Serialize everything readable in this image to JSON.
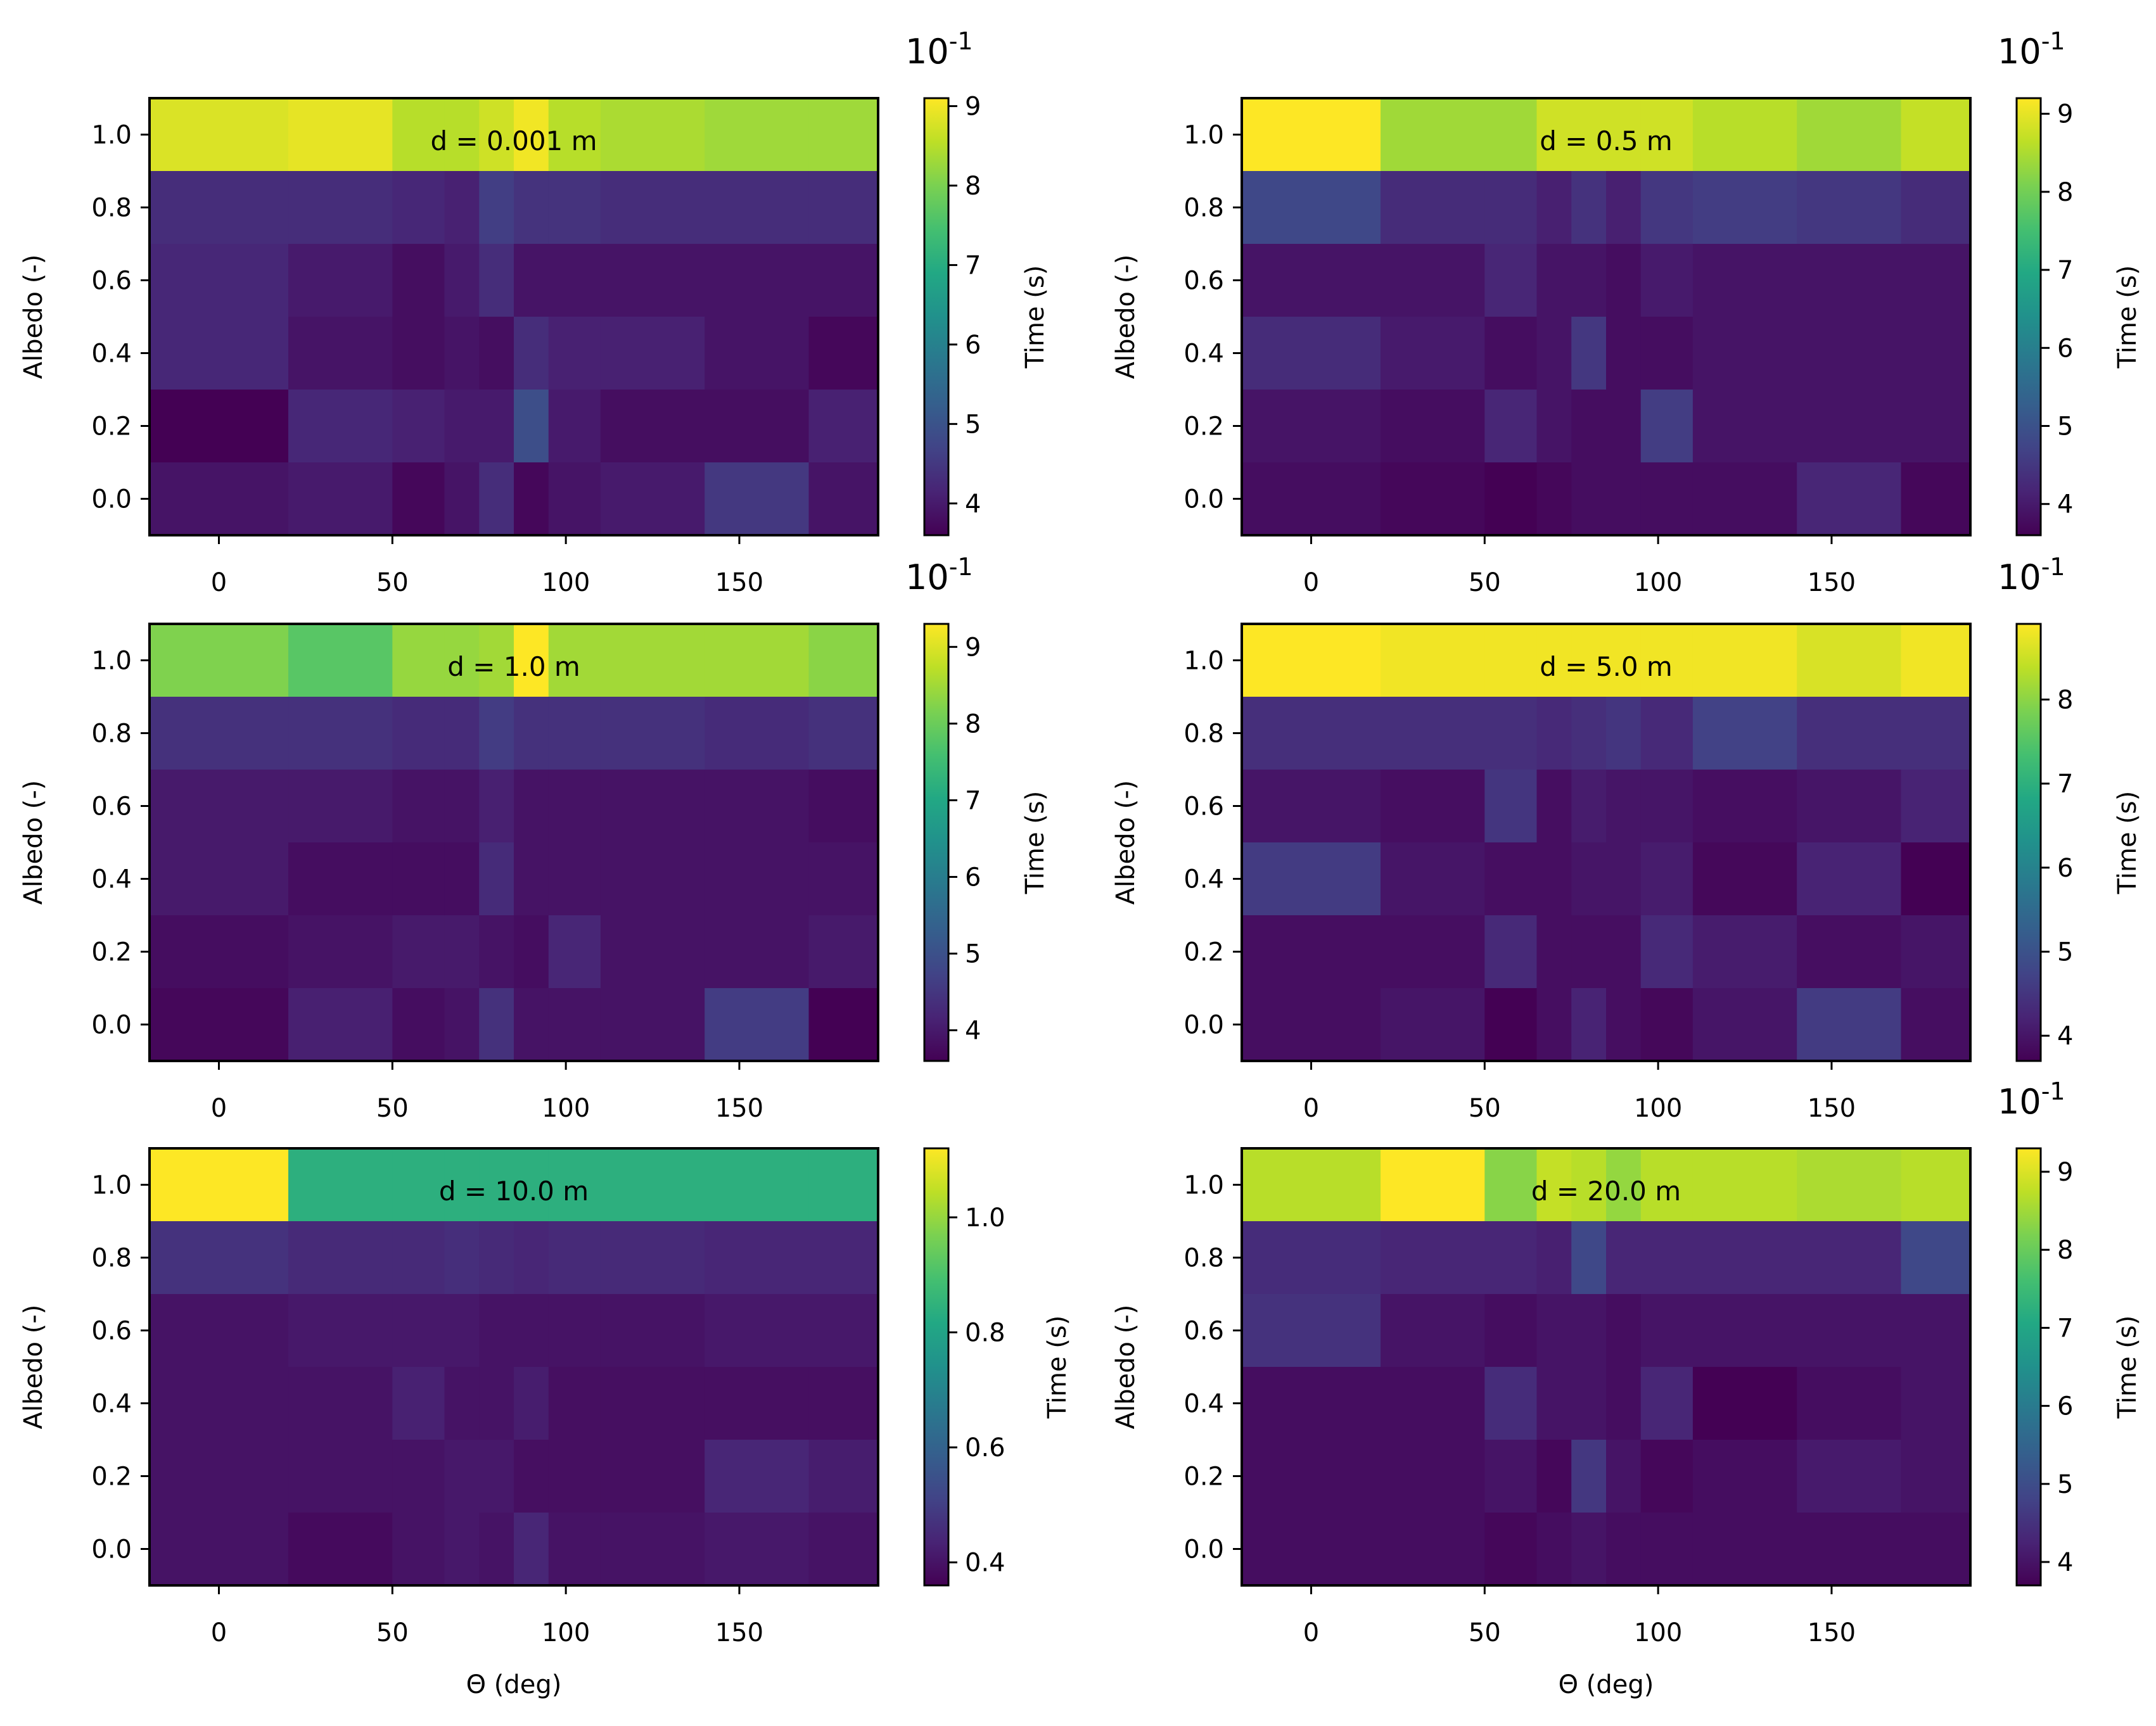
{
  "figure": {
    "x_axis_label": "Θ (deg)",
    "y_axis_label": "Albedo (-)",
    "colorbar_label": "Time (s)",
    "colormap": "viridis",
    "axes_color": "#000000",
    "background": "#ffffff"
  },
  "chart_data": [
    {
      "type": "heatmap",
      "title": "d = 0.001 m",
      "x_edges": [
        -20,
        20,
        50,
        65,
        75,
        85,
        95,
        110,
        140,
        170,
        190
      ],
      "x_ticks": [
        "0",
        "50",
        "100",
        "150"
      ],
      "y_centers": [
        1.0,
        0.8,
        0.6,
        0.4,
        0.2,
        0.0
      ],
      "y_ticks": [
        "1.0",
        "0.8",
        "0.6",
        "0.4",
        "0.2",
        "0.0"
      ],
      "xlim": [
        -20,
        190
      ],
      "ylim": [
        -0.1,
        1.1
      ],
      "clim": [
        3.6,
        9.1
      ],
      "colorbar_ticks": [
        "4",
        "5",
        "6",
        "7",
        "8",
        "9"
      ],
      "colorbar_multiplier": "10-1",
      "values": [
        [
          8.8,
          8.9,
          8.5,
          8.5,
          8.7,
          9.0,
          8.5,
          8.4,
          8.3,
          8.3
        ],
        [
          4.3,
          4.3,
          4.2,
          4.1,
          4.6,
          4.4,
          4.4,
          4.3,
          4.3,
          4.3
        ],
        [
          4.2,
          4.0,
          3.8,
          4.0,
          4.3,
          3.9,
          3.9,
          3.9,
          3.9,
          3.9
        ],
        [
          4.2,
          3.9,
          3.8,
          3.9,
          3.8,
          4.3,
          4.1,
          4.1,
          3.9,
          3.7
        ],
        [
          3.6,
          4.2,
          4.1,
          4.0,
          4.0,
          4.9,
          4.0,
          3.8,
          3.8,
          4.1
        ],
        [
          3.9,
          4.0,
          3.7,
          3.9,
          4.3,
          3.7,
          3.9,
          4.0,
          4.5,
          3.9
        ]
      ]
    },
    {
      "type": "heatmap",
      "title": "d = 0.5 m",
      "x_edges": [
        -20,
        20,
        50,
        65,
        75,
        85,
        95,
        110,
        140,
        170,
        190
      ],
      "x_ticks": [
        "0",
        "50",
        "100",
        "150"
      ],
      "y_centers": [
        1.0,
        0.8,
        0.6,
        0.4,
        0.2,
        0.0
      ],
      "y_ticks": [
        "1.0",
        "0.8",
        "0.6",
        "0.4",
        "0.2",
        "0.0"
      ],
      "xlim": [
        -20,
        190
      ],
      "ylim": [
        -0.1,
        1.1
      ],
      "clim": [
        3.6,
        9.2
      ],
      "colorbar_ticks": [
        "4",
        "5",
        "6",
        "7",
        "8",
        "9"
      ],
      "colorbar_multiplier": "10-1",
      "values": [
        [
          9.2,
          8.4,
          8.4,
          8.8,
          8.8,
          8.8,
          8.8,
          8.6,
          8.4,
          8.7
        ],
        [
          4.8,
          4.3,
          4.3,
          4.1,
          4.4,
          4.1,
          4.5,
          4.6,
          4.5,
          4.3
        ],
        [
          3.9,
          3.9,
          4.2,
          3.9,
          3.9,
          3.8,
          4.0,
          3.9,
          3.9,
          3.9
        ],
        [
          4.3,
          4.0,
          3.8,
          3.9,
          4.5,
          3.8,
          3.8,
          3.9,
          3.9,
          3.9
        ],
        [
          3.9,
          3.8,
          4.2,
          3.9,
          3.8,
          3.8,
          4.6,
          3.9,
          3.9,
          3.9
        ],
        [
          3.8,
          3.7,
          3.6,
          3.7,
          3.8,
          3.8,
          3.8,
          3.8,
          4.2,
          3.7
        ]
      ]
    },
    {
      "type": "heatmap",
      "title": "d = 1.0 m",
      "x_edges": [
        -20,
        20,
        50,
        65,
        75,
        85,
        95,
        110,
        140,
        170,
        190
      ],
      "x_ticks": [
        "0",
        "50",
        "100",
        "150"
      ],
      "y_centers": [
        1.0,
        0.8,
        0.6,
        0.4,
        0.2,
        0.0
      ],
      "y_ticks": [
        "1.0",
        "0.8",
        "0.6",
        "0.4",
        "0.2",
        "0.0"
      ],
      "xlim": [
        -20,
        190
      ],
      "ylim": [
        -0.1,
        1.1
      ],
      "clim": [
        3.6,
        9.3
      ],
      "colorbar_ticks": [
        "4",
        "5",
        "6",
        "7",
        "8",
        "9"
      ],
      "colorbar_multiplier": "10-1",
      "values": [
        [
          8.2,
          7.8,
          8.4,
          8.4,
          8.5,
          9.3,
          8.5,
          8.5,
          8.5,
          8.3
        ],
        [
          4.4,
          4.4,
          4.3,
          4.3,
          4.6,
          4.4,
          4.4,
          4.4,
          4.3,
          4.4
        ],
        [
          4.0,
          4.0,
          3.9,
          3.9,
          4.1,
          3.9,
          3.9,
          3.9,
          3.9,
          3.8
        ],
        [
          4.0,
          3.8,
          3.8,
          3.8,
          4.3,
          3.9,
          3.9,
          3.9,
          3.9,
          3.9
        ],
        [
          3.8,
          3.9,
          4.0,
          4.0,
          3.9,
          3.8,
          4.2,
          3.9,
          3.9,
          4.0
        ],
        [
          3.7,
          4.1,
          3.8,
          3.9,
          4.4,
          3.9,
          3.9,
          3.9,
          4.6,
          3.6
        ]
      ]
    },
    {
      "type": "heatmap",
      "title": "d = 5.0 m",
      "x_edges": [
        -20,
        20,
        50,
        65,
        75,
        85,
        95,
        110,
        140,
        170,
        190
      ],
      "x_ticks": [
        "0",
        "50",
        "100",
        "150"
      ],
      "y_centers": [
        1.0,
        0.8,
        0.6,
        0.4,
        0.2,
        0.0
      ],
      "y_ticks": [
        "1.0",
        "0.8",
        "0.6",
        "0.4",
        "0.2",
        "0.0"
      ],
      "xlim": [
        -20,
        190
      ],
      "ylim": [
        -0.1,
        1.1
      ],
      "clim": [
        3.7,
        8.9
      ],
      "colorbar_ticks": [
        "4",
        "5",
        "6",
        "7",
        "8"
      ],
      "colorbar_multiplier": "10-1",
      "values": [
        [
          8.9,
          8.8,
          8.8,
          8.8,
          8.8,
          8.8,
          8.8,
          8.8,
          8.6,
          8.8
        ],
        [
          4.4,
          4.4,
          4.4,
          4.3,
          4.4,
          4.5,
          4.3,
          4.7,
          4.4,
          4.4
        ],
        [
          4.0,
          3.9,
          4.5,
          3.9,
          4.1,
          4.0,
          4.0,
          3.9,
          4.0,
          4.2
        ],
        [
          4.6,
          4.0,
          3.9,
          3.9,
          4.0,
          4.0,
          4.1,
          3.8,
          4.2,
          3.7
        ],
        [
          3.9,
          3.9,
          4.3,
          3.9,
          3.9,
          3.9,
          4.3,
          4.1,
          3.9,
          4.0
        ],
        [
          3.9,
          4.0,
          3.7,
          3.9,
          4.2,
          3.9,
          3.8,
          4.0,
          4.6,
          3.9
        ]
      ]
    },
    {
      "type": "heatmap",
      "title": "d = 10.0 m",
      "x_edges": [
        -20,
        20,
        50,
        65,
        75,
        85,
        95,
        110,
        140,
        170,
        190
      ],
      "x_ticks": [
        "0",
        "50",
        "100",
        "150"
      ],
      "y_centers": [
        1.0,
        0.8,
        0.6,
        0.4,
        0.2,
        0.0
      ],
      "y_ticks": [
        "1.0",
        "0.8",
        "0.6",
        "0.4",
        "0.2",
        "0.0"
      ],
      "xlim": [
        -20,
        190
      ],
      "ylim": [
        -0.1,
        1.1
      ],
      "clim": [
        0.36,
        1.12
      ],
      "colorbar_ticks": [
        "0.4",
        "0.6",
        "0.8",
        "1.0"
      ],
      "colorbar_multiplier": "",
      "values": [
        [
          1.12,
          0.84,
          0.84,
          0.84,
          0.84,
          0.84,
          0.84,
          0.84,
          0.84,
          0.84
        ],
        [
          0.47,
          0.45,
          0.45,
          0.46,
          0.45,
          0.44,
          0.45,
          0.45,
          0.44,
          0.44
        ],
        [
          0.4,
          0.41,
          0.41,
          0.41,
          0.4,
          0.4,
          0.4,
          0.4,
          0.41,
          0.41
        ],
        [
          0.4,
          0.4,
          0.43,
          0.4,
          0.4,
          0.42,
          0.39,
          0.39,
          0.39,
          0.39
        ],
        [
          0.4,
          0.4,
          0.4,
          0.41,
          0.41,
          0.39,
          0.39,
          0.39,
          0.44,
          0.42
        ],
        [
          0.4,
          0.38,
          0.4,
          0.41,
          0.4,
          0.44,
          0.4,
          0.4,
          0.41,
          0.4
        ]
      ]
    },
    {
      "type": "heatmap",
      "title": "d = 20.0 m",
      "x_edges": [
        -20,
        20,
        50,
        65,
        75,
        85,
        95,
        110,
        140,
        170,
        190
      ],
      "x_ticks": [
        "0",
        "50",
        "100",
        "150"
      ],
      "y_centers": [
        1.0,
        0.8,
        0.6,
        0.4,
        0.2,
        0.0
      ],
      "y_ticks": [
        "1.0",
        "0.8",
        "0.6",
        "0.4",
        "0.2",
        "0.0"
      ],
      "xlim": [
        -20,
        190
      ],
      "ylim": [
        -0.1,
        1.1
      ],
      "clim": [
        3.7,
        9.3
      ],
      "colorbar_ticks": [
        "4",
        "5",
        "6",
        "7",
        "8",
        "9"
      ],
      "colorbar_multiplier": "10-1",
      "values": [
        [
          8.7,
          9.3,
          8.3,
          8.8,
          8.7,
          8.4,
          8.7,
          8.7,
          8.6,
          8.7
        ],
        [
          4.4,
          4.3,
          4.3,
          4.2,
          4.9,
          4.3,
          4.3,
          4.3,
          4.3,
          4.9
        ],
        [
          4.5,
          4.0,
          3.9,
          4.0,
          4.0,
          3.9,
          4.0,
          4.0,
          4.0,
          4.0
        ],
        [
          3.9,
          3.9,
          4.4,
          4.0,
          4.0,
          3.9,
          4.3,
          3.7,
          3.9,
          4.0
        ],
        [
          3.9,
          3.9,
          4.0,
          3.8,
          4.6,
          4.0,
          3.8,
          3.9,
          4.1,
          4.0
        ],
        [
          3.9,
          3.9,
          3.8,
          3.9,
          4.0,
          3.9,
          3.9,
          3.9,
          3.9,
          3.9
        ]
      ]
    }
  ]
}
